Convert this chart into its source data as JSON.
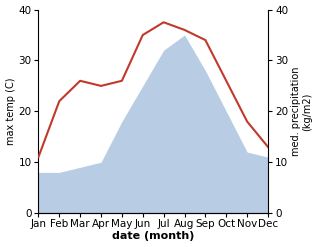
{
  "months": [
    "Jan",
    "Feb",
    "Mar",
    "Apr",
    "May",
    "Jun",
    "Jul",
    "Aug",
    "Sep",
    "Oct",
    "Nov",
    "Dec"
  ],
  "max_temp": [
    11,
    22,
    26,
    25,
    26,
    35,
    37.5,
    36,
    34,
    26,
    18,
    13
  ],
  "precipitation": [
    8,
    8,
    9,
    10,
    18,
    25,
    32,
    35,
    28,
    20,
    12,
    11
  ],
  "temp_color": "#c0392b",
  "precip_color": "#b8cce4",
  "ylim_left": [
    0,
    40
  ],
  "ylim_right": [
    0,
    40
  ],
  "xlabel": "date (month)",
  "ylabel_left": "max temp (C)",
  "ylabel_right": "med. precipitation\n(kg/m2)",
  "bg_color": "#ffffff",
  "label_fontsize": 8,
  "tick_fontsize": 7.5,
  "yticks": [
    0,
    10,
    20,
    30,
    40
  ]
}
